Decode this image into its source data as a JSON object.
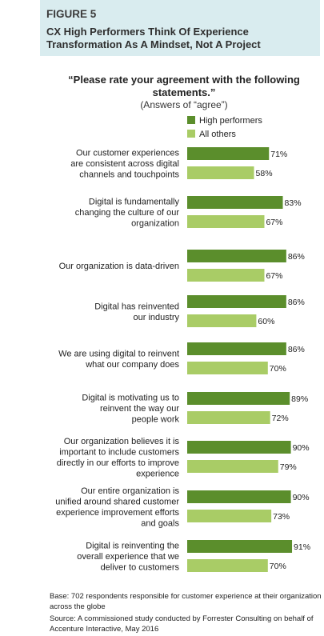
{
  "figure_label": "FIGURE 5",
  "figure_title": "CX High Performers Think Of Experience Transformation As A Mindset, Not A Project",
  "question": "“Please rate your agreement with the following statements.”",
  "subquestion": "(Answers of “agree”)",
  "base_note": "Base: 702 respondents responsible for customer experience at their organization across the globe",
  "source_note": "Source: A commissioned study conducted by Forrester Consulting on behalf of Accenture Interactive, May 2016",
  "colors": {
    "high": "#5b8e2c",
    "others": "#a9cc66",
    "header_bg": "#d9ecef"
  },
  "chart_data": {
    "type": "bar",
    "orientation": "horizontal",
    "categories": [
      "Our customer experiences are consistent across digital channels and touchpoints",
      "Digital is fundamentally changing the culture of our organization",
      "Our organization is data-driven",
      "Digital has reinvented our industry",
      "We are using digital to reinvent what our company does",
      "Digital is motivating us to reinvent the way our people work",
      "Our organization believes it is important to include customers directly in our efforts to improve experience",
      "Our entire organization is unified around shared customer experience improvement efforts and goals",
      "Digital is reinventing the overall experience that we deliver to customers"
    ],
    "category_lines": [
      [
        "Our customer experiences",
        "are consistent across digital",
        "channels and touchpoints"
      ],
      [
        "Digital is fundamentally",
        "changing the culture of our",
        "organization"
      ],
      [
        "Our organization is data-driven"
      ],
      [
        "Digital has reinvented",
        "our industry"
      ],
      [
        "We are using digital to reinvent",
        "what our company does"
      ],
      [
        "Digital is motivating us to",
        "reinvent the way our",
        "people work"
      ],
      [
        "Our organization believes it is",
        "important to include customers",
        "directly in our efforts to improve",
        "experience"
      ],
      [
        "Our entire organization is",
        "unified around shared customer",
        "experience improvement efforts",
        "and goals"
      ],
      [
        "Digital is reinventing the",
        "overall experience that we",
        "deliver to customers"
      ]
    ],
    "series": [
      {
        "name": "High performers",
        "values": [
          71,
          83,
          86,
          86,
          86,
          89,
          90,
          90,
          91
        ]
      },
      {
        "name": "All others",
        "values": [
          58,
          67,
          67,
          60,
          70,
          72,
          79,
          73,
          70
        ]
      }
    ],
    "value_labels": {
      "high": [
        "71%",
        "83%",
        "86%",
        "86%",
        "86%",
        "89%",
        "90%",
        "90%",
        "91%"
      ],
      "others": [
        "58%",
        "67%",
        "67%",
        "60%",
        "70%",
        "72%",
        "79%",
        "73%",
        "70%"
      ]
    },
    "xlim": [
      0,
      100
    ],
    "legend_position": "top"
  }
}
